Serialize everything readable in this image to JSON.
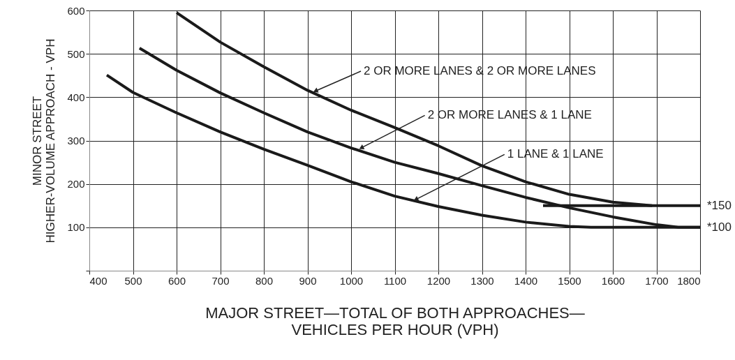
{
  "chart_data": {
    "type": "line",
    "xlabel": "MAJOR STREET—TOTAL OF BOTH APPROACHES—\nVEHICLES PER HOUR (VPH)",
    "ylabel": "MINOR STREET\nHIGHER-VOLUME APPROACH - VPH",
    "xlim": [
      400,
      1800
    ],
    "xticks": [
      400,
      500,
      600,
      700,
      800,
      900,
      1000,
      1100,
      1200,
      1300,
      1400,
      1500,
      1600,
      1700,
      1800
    ],
    "ylim": [
      0,
      600
    ],
    "yticks": [
      {
        "value": 0,
        "label": null
      },
      100,
      200,
      300,
      400,
      500,
      600
    ],
    "grid": true,
    "marker": "none",
    "line_style": "solid",
    "series": [
      {
        "color": "#1a1a1a",
        "x": [
          600,
          700,
          800,
          900,
          1000,
          1100,
          1200,
          1300,
          1400,
          1500,
          1600,
          1690,
          1800
        ],
        "values": [
          595,
          527,
          470,
          416,
          370,
          330,
          288,
          242,
          205,
          176,
          158,
          150,
          150
        ]
      },
      {
        "color": "#1a1a1a",
        "x": [
          515,
          600,
          700,
          800,
          900,
          1000,
          1100,
          1200,
          1300,
          1400,
          1500,
          1600,
          1700,
          1750,
          1800
        ],
        "values": [
          513,
          462,
          410,
          364,
          320,
          283,
          250,
          224,
          196,
          169,
          145,
          124,
          106,
          100,
          100
        ]
      },
      {
        "color": "#1a1a1a",
        "x": [
          440,
          500,
          600,
          700,
          800,
          900,
          1000,
          1100,
          1200,
          1300,
          1400,
          1500,
          1550,
          1800
        ],
        "values": [
          451,
          411,
          364,
          320,
          280,
          243,
          205,
          172,
          148,
          128,
          112,
          102,
          100,
          100
        ]
      },
      {
        "color": "#1a1a1a",
        "x": [
          1440,
          1690
        ],
        "values": [
          150,
          150
        ]
      }
    ],
    "annotations": [
      {
        "text": "2 OR MORE LANES & 2 OR MORE LANES",
        "x": 920,
        "y": 415
      },
      {
        "text": "2 OR MORE LANES & 1 LANE",
        "x": 1025,
        "y": 284
      },
      {
        "text": "1 LANE & 1 LANE",
        "x": 1150,
        "y": 165
      },
      {
        "text": "*150",
        "x": 1800,
        "y": 150
      },
      {
        "text": "*100",
        "x": 1800,
        "y": 100
      }
    ]
  }
}
